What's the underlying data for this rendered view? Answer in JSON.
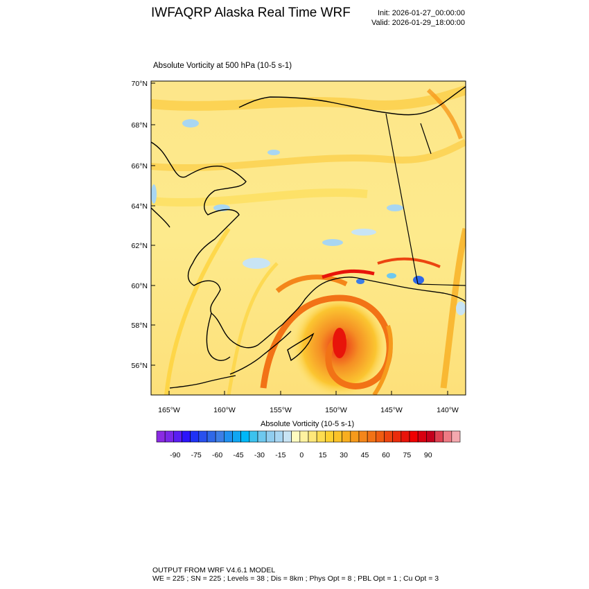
{
  "header": {
    "title": "IWFAQRP Alaska Real Time WRF",
    "init": "Init: 2026-01-27_00:00:00",
    "valid": "Valid: 2026-01-29_18:00:00"
  },
  "panel": {
    "field_title": "Absolute Vorticity at 500 hPa   (10-5 s-1)",
    "lat_labels": [
      "70°N",
      "68°N",
      "66°N",
      "64°N",
      "62°N",
      "60°N",
      "58°N",
      "56°N"
    ],
    "lon_labels": [
      "165°W",
      "160°W",
      "155°W",
      "150°W",
      "145°W",
      "140°W"
    ]
  },
  "colorbar": {
    "title": "Absolute Vorticity  (10-5 s-1)",
    "tick_labels": [
      "-90",
      "-75",
      "-60",
      "-45",
      "-30",
      "-15",
      "0",
      "15",
      "30",
      "45",
      "60",
      "75",
      "90"
    ],
    "colors": [
      "#8a2be2",
      "#7a28e8",
      "#5a1ef2",
      "#2c14fa",
      "#1e32f5",
      "#2850ee",
      "#2f68e8",
      "#3d7ee6",
      "#2090f0",
      "#10a6f2",
      "#00b8f8",
      "#3cc2ee",
      "#6ec8ee",
      "#90cdef",
      "#a8d6f2",
      "#c8e4f4",
      "#fefbc0",
      "#fef2a0",
      "#fee87a",
      "#fddc50",
      "#fdd030",
      "#fbc228",
      "#f8ae20",
      "#f69a1c",
      "#f4861a",
      "#f27216",
      "#ef5c12",
      "#ec4410",
      "#ea2c0c",
      "#e8140a",
      "#f00000",
      "#d80010",
      "#c4001c",
      "#de4050",
      "#ee7a84",
      "#f4a8ae"
    ]
  },
  "footer": {
    "line1": "OUTPUT FROM WRF V4.6.1 MODEL",
    "line2": "WE = 225 ; SN = 225 ; Levels = 38 ; Dis = 8km ; Phys Opt = 8 ; PBL Opt = 1 ; Cu Opt = 3"
  }
}
